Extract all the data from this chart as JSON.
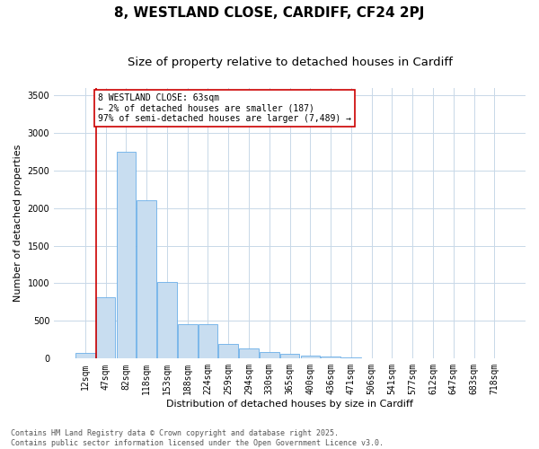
{
  "title1": "8, WESTLAND CLOSE, CARDIFF, CF24 2PJ",
  "title2": "Size of property relative to detached houses in Cardiff",
  "xlabel": "Distribution of detached houses by size in Cardiff",
  "ylabel": "Number of detached properties",
  "categories": [
    "12sqm",
    "47sqm",
    "82sqm",
    "118sqm",
    "153sqm",
    "188sqm",
    "224sqm",
    "259sqm",
    "294sqm",
    "330sqm",
    "365sqm",
    "400sqm",
    "436sqm",
    "471sqm",
    "506sqm",
    "541sqm",
    "577sqm",
    "612sqm",
    "647sqm",
    "683sqm",
    "718sqm"
  ],
  "values": [
    80,
    820,
    2750,
    2100,
    1020,
    460,
    460,
    195,
    140,
    90,
    60,
    40,
    25,
    12,
    7,
    4,
    2,
    1,
    1,
    0,
    0
  ],
  "bar_color": "#c8ddf0",
  "bar_edge_color": "#6aaee8",
  "vline_color": "#cc0000",
  "vline_x": 0.55,
  "annotation_text": "8 WESTLAND CLOSE: 63sqm\n← 2% of detached houses are smaller (187)\n97% of semi-detached houses are larger (7,489) →",
  "annotation_box_color": "#cc0000",
  "ylim": [
    0,
    3600
  ],
  "yticks": [
    0,
    500,
    1000,
    1500,
    2000,
    2500,
    3000,
    3500
  ],
  "background_color": "#ffffff",
  "grid_color": "#c8d8e8",
  "footer1": "Contains HM Land Registry data © Crown copyright and database right 2025.",
  "footer2": "Contains public sector information licensed under the Open Government Licence v3.0.",
  "title1_fontsize": 11,
  "title2_fontsize": 9.5,
  "tick_fontsize": 7,
  "ylabel_fontsize": 8,
  "xlabel_fontsize": 8,
  "ann_fontsize": 7,
  "footer_fontsize": 6
}
